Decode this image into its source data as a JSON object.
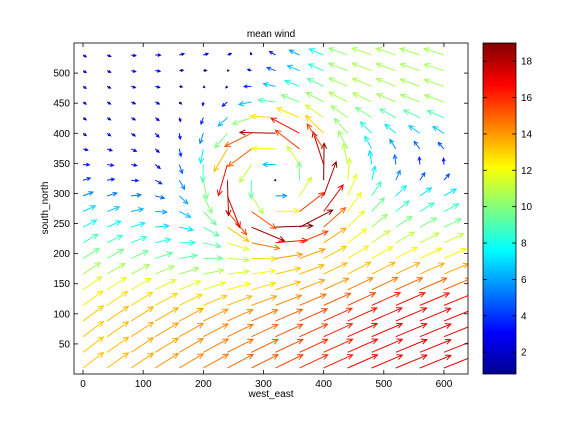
{
  "chart_data": {
    "type": "quiver",
    "title": "mean wind",
    "xlabel": "west_east",
    "ylabel": "south_north",
    "xlim": [
      -15,
      640
    ],
    "ylim": [
      0,
      550
    ],
    "xticks": [
      0,
      100,
      200,
      300,
      400,
      500,
      600
    ],
    "yticks": [
      50,
      100,
      150,
      200,
      250,
      300,
      350,
      400,
      450,
      500
    ],
    "colorbar": {
      "label": "",
      "range": [
        0.8,
        19
      ],
      "ticks": [
        2,
        4,
        6,
        8,
        10,
        12,
        14,
        16,
        18
      ],
      "colormap": "jet"
    },
    "grid": false,
    "field": {
      "x_spacing": 40,
      "y_spacing": 26,
      "x_start": 0,
      "y_start": 10,
      "nx": 16,
      "ny": 21,
      "vortex_center": [
        320,
        320
      ],
      "vortex_peak_speed": 18.5,
      "ambient_flow": "northeast (south-west to north-east) in lower half, westward/north-westward in upper right"
    }
  }
}
